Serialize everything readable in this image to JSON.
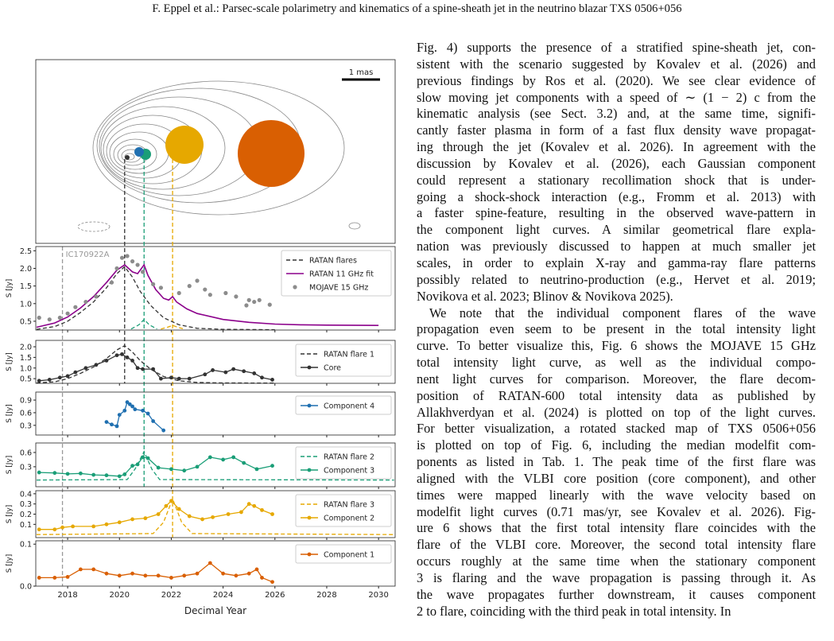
{
  "header": "F. Eppel et al.: Parsec-scale polarimetry and kinematics of a spine-sheath jet in the neutrino blazar TXS 0506+056",
  "figure": {
    "scale_label": "1 mas",
    "annotation": {
      "text": "IC170922A",
      "x": 2017.8
    },
    "flare_lines": [
      {
        "x": 2020.2,
        "color": "#333333"
      },
      {
        "x": 2020.95,
        "color": "#1a9e77"
      },
      {
        "x": 2022.05,
        "color": "#e6a800"
      }
    ],
    "x_label": "Decimal Year",
    "xlim": [
      2016.77,
      2030.64
    ],
    "xticks": [
      2018,
      2020,
      2022,
      2024,
      2026,
      2028,
      2030
    ],
    "panels": [
      {
        "ylabel": "S [Jy]",
        "ylim": [
          0.25,
          2.62
        ],
        "yticks": [
          0.5,
          {
            "value": 1,
            "label": "1.0"
          },
          1.5,
          {
            "value": 2,
            "label": "2.0"
          },
          2.5
        ],
        "series": [
          {
            "name": "RATAN flares",
            "color": "#333333",
            "style": "dashed",
            "x": [
              2016.8,
              2017.5,
              2018,
              2018.5,
              2019,
              2019.5,
              2019.9,
              2020.2,
              2020.5,
              2020.8,
              2021.2,
              2021.7,
              2022.3,
              2023,
              2024,
              2026
            ],
            "values": [
              0.27,
              0.35,
              0.5,
              0.75,
              1.05,
              1.45,
              1.85,
              2.05,
              1.75,
              1.35,
              0.95,
              0.6,
              0.4,
              0.3,
              0.27,
              0.26
            ]
          },
          {
            "color": "#1a9e77",
            "style": "dashed",
            "x": [
              2020.45,
              2020.75,
              2020.95,
              2021.15,
              2021.45
            ],
            "values": [
              0.28,
              0.4,
              0.55,
              0.4,
              0.28
            ]
          },
          {
            "color": "#e6a800",
            "style": "dashed",
            "x": [
              2021.6,
              2021.85,
              2022.05,
              2022.25,
              2022.5
            ],
            "values": [
              0.28,
              0.33,
              0.38,
              0.33,
              0.28
            ]
          },
          {
            "name": "RATAN 11 GHz fit",
            "color": "#8b008b",
            "style": "line",
            "x": [
              2016.8,
              2017.5,
              2018,
              2018.5,
              2019,
              2019.5,
              2019.9,
              2020.2,
              2020.5,
              2020.7,
              2020.95,
              2021.1,
              2021.4,
              2021.7,
              2021.9,
              2022.05,
              2022.2,
              2022.6,
              2023,
              2024,
              2025,
              2026,
              2027,
              2028,
              2030
            ],
            "values": [
              0.33,
              0.45,
              0.62,
              0.88,
              1.2,
              1.6,
              1.95,
              2.1,
              1.9,
              1.85,
              2.1,
              1.8,
              1.4,
              1.15,
              1.1,
              1.2,
              1.05,
              0.85,
              0.72,
              0.55,
              0.47,
              0.42,
              0.4,
              0.39,
              0.38
            ]
          },
          {
            "name": "MOJAVE 15 GHz",
            "color": "#8c8c8c",
            "style": "points",
            "x": [
              2016.9,
              2017.3,
              2017.7,
              2018,
              2018.3,
              2018.7,
              2019.1,
              2019.7,
              2019.9,
              2020.1,
              2020.3,
              2020.5,
              2020.7,
              2020.9,
              2021.3,
              2021.6,
              2022.3,
              2022.7,
              2023,
              2023.3,
              2023.5,
              2024.1,
              2024.5,
              2024.9,
              2025,
              2025.2,
              2025.4,
              2025.8
            ],
            "values": [
              0.6,
              0.55,
              0.6,
              0.72,
              0.9,
              1.05,
              1.2,
              1.6,
              2,
              2.3,
              2.35,
              2.2,
              2.1,
              1.9,
              1.55,
              1.45,
              1.3,
              1.5,
              1.65,
              1.4,
              1.25,
              1.3,
              1.2,
              0.95,
              1.1,
              1.05,
              1.1,
              0.97
            ]
          }
        ]
      },
      {
        "ylabel": "S [Jy]",
        "ylim": [
          0.28,
          2.3
        ],
        "yticks": [
          0.5,
          {
            "value": 1,
            "label": "1.0"
          },
          1.5,
          {
            "value": 2,
            "label": "2.0"
          }
        ],
        "series": [
          {
            "name": "RATAN flare 1",
            "color": "#333333",
            "style": "dashed",
            "x": [
              2016.8,
              2017.5,
              2018,
              2018.5,
              2019,
              2019.5,
              2019.9,
              2020.2,
              2020.5,
              2020.8,
              2021.2,
              2021.7,
              2022.3,
              2023,
              2024,
              2026
            ],
            "values": [
              0.3,
              0.35,
              0.5,
              0.75,
              1.05,
              1.45,
              1.85,
              2.05,
              1.75,
              1.35,
              0.95,
              0.6,
              0.4,
              0.32,
              0.3,
              0.29
            ]
          },
          {
            "name": "Core",
            "color": "#333333",
            "style": "markers",
            "x": [
              2016.9,
              2017.3,
              2017.7,
              2018,
              2018.3,
              2018.7,
              2019.1,
              2019.5,
              2019.9,
              2020.1,
              2020.3,
              2020.5,
              2020.7,
              2020.9,
              2021.3,
              2021.6,
              2022,
              2022.3,
              2022.7,
              2023.3,
              2023.6,
              2024.1,
              2024.4,
              2024.8,
              2025.2,
              2025.5,
              2025.9
            ],
            "values": [
              0.4,
              0.45,
              0.55,
              0.62,
              0.8,
              1,
              1.15,
              1.35,
              1.6,
              1.65,
              1.5,
              1.35,
              1,
              0.95,
              0.95,
              0.5,
              0.55,
              0.5,
              0.5,
              0.7,
              0.9,
              0.8,
              0.95,
              0.85,
              0.75,
              0.55,
              0.45
            ]
          }
        ]
      },
      {
        "ylabel": "S [Jy]",
        "ylim": [
          0.07,
          1.09
        ],
        "yticks": [
          0.3,
          0.6,
          0.9
        ],
        "series": [
          {
            "name": "Component 4",
            "color": "#1f6fb0",
            "style": "markers",
            "x": [
              2019.5,
              2019.7,
              2019.9,
              2020,
              2020.2,
              2020.3,
              2020.4,
              2020.5,
              2020.6,
              2020.9,
              2021.1,
              2021.3,
              2021.7
            ],
            "values": [
              0.38,
              0.32,
              0.28,
              0.55,
              0.65,
              0.85,
              0.8,
              0.75,
              0.68,
              0.65,
              0.58,
              0.4,
              0.18
            ]
          }
        ]
      },
      {
        "ylabel": "S [Jy]",
        "ylim": [
          -0.12,
          0.8
        ],
        "yticks": [
          0.3,
          0.6
        ],
        "series": [
          {
            "name": "RATAN flare 2",
            "color": "#1a9e77",
            "style": "dashed",
            "x": [
              2016.8,
              2020.3,
              2020.6,
              2020.95,
              2021.25,
              2021.55,
              2030.6
            ],
            "values": [
              0.02,
              0.03,
              0.25,
              0.62,
              0.25,
              0.03,
              0.02
            ]
          },
          {
            "name": "Component 3",
            "color": "#1a9e77",
            "style": "markers",
            "x": [
              2016.9,
              2017.5,
              2018,
              2018.5,
              2019,
              2019.5,
              2020,
              2020.2,
              2020.5,
              2020.7,
              2020.9,
              2021.1,
              2021.5,
              2022,
              2022.5,
              2023,
              2023.5,
              2024,
              2024.4,
              2024.8,
              2025.3,
              2025.9
            ],
            "values": [
              0.18,
              0.17,
              0.15,
              0.16,
              0.13,
              0.12,
              0.1,
              0.14,
              0.32,
              0.35,
              0.5,
              0.48,
              0.28,
              0.25,
              0.22,
              0.3,
              0.5,
              0.45,
              0.5,
              0.38,
              0.25,
              0.32
            ]
          }
        ]
      },
      {
        "ylabel": "S [Jy]",
        "ylim": [
          -0.03,
          0.43
        ],
        "yticks": [
          0.1,
          0.2,
          0.3,
          0.4
        ],
        "series": [
          {
            "name": "RATAN flare 3",
            "color": "#e6a800",
            "style": "dashed",
            "x": [
              2016.8,
              2021.3,
              2021.7,
              2022.05,
              2022.4,
              2022.8,
              2030.6
            ],
            "values": [
              0,
              0.01,
              0.12,
              0.35,
              0.12,
              0.01,
              0
            ]
          },
          {
            "name": "Component 2",
            "color": "#e6a800",
            "style": "markers",
            "x": [
              2016.9,
              2017.5,
              2017.8,
              2018.2,
              2019,
              2019.5,
              2020,
              2020.5,
              2021,
              2021.5,
              2021.8,
              2022,
              2022.3,
              2022.7,
              2023.2,
              2023.6,
              2024.2,
              2024.7,
              2025,
              2025.2,
              2025.5,
              2025.9
            ],
            "values": [
              0.05,
              0.05,
              0.07,
              0.08,
              0.08,
              0.1,
              0.12,
              0.15,
              0.16,
              0.2,
              0.28,
              0.33,
              0.25,
              0.18,
              0.15,
              0.17,
              0.2,
              0.22,
              0.3,
              0.28,
              0.24,
              0.2
            ]
          }
        ]
      },
      {
        "ylabel": "S [Jy]",
        "ylim": [
          0,
          0.108
        ],
        "yticks": [
          {
            "value": 0,
            "label": "0.0"
          },
          0.1
        ],
        "series": [
          {
            "name": "Component 1",
            "color": "#d95f02",
            "style": "markers",
            "x": [
              2016.9,
              2017.5,
              2018,
              2018.5,
              2019,
              2019.5,
              2020,
              2020.5,
              2021,
              2021.5,
              2022,
              2022.5,
              2023,
              2023.5,
              2024,
              2024.5,
              2025,
              2025.3,
              2025.5,
              2025.9
            ],
            "values": [
              0.02,
              0.02,
              0.022,
              0.04,
              0.04,
              0.03,
              0.025,
              0.03,
              0.025,
              0.025,
              0.02,
              0.025,
              0.03,
              0.055,
              0.03,
              0.025,
              0.03,
              0.04,
              0.02,
              0.01
            ]
          }
        ]
      }
    ]
  },
  "paragraphs": [
    [
      "Fig. 4) supports the presence of a stratified spine-sheath jet, con-",
      "sistent with the scenario suggested by Kovalev et al. (2026) and",
      "previous findings by Ros et al. (2020). We see clear evidence of",
      "slow moving jet components with a speed of ∼ (1 − 2) c from the",
      "kinematic analysis (see Sect. 3.2) and, at the same time, signifi-",
      "cantly faster plasma in form of a fast flux density wave propagat-",
      "ing through the jet (Kovalev et al. 2026). In agreement with the",
      "discussion by Kovalev et al. (2026), each Gaussian component",
      "could represent a stationary recollimation shock that is under-",
      "going a shock-shock interaction (e.g., Fromm et al. 2013) with",
      "a faster spine-feature, resulting in the observed wave-pattern in",
      "the component light curves. A similar geometrical flare expla-",
      "nation was previously discussed to happen at much smaller jet",
      "scales, in order to explain X-ray and gamma-ray flare patterns",
      "possibly related to neutrino-production (e.g., Hervet et al. 2019;",
      "Novikova et al. 2023; Blinov & Novikova 2025)."
    ],
    [
      "We note that the individual component flares of the wave",
      "propagation even seem to be present in the total intensity light",
      "curve. To better visualize this, Fig. 6 shows the MOJAVE 15 GHz",
      "total intensity light curve, as well as the individual compo-",
      "nent light curves for comparison. Moreover, the flare decom-",
      "position of RATAN-600 total intensity data as published by",
      "Allakhverdyan et al. (2024) is plotted on top of the light curves.",
      "For better visualization, a rotated stacked map of TXS 0506+056",
      "is plotted on top of Fig. 6, including the median modelfit com-",
      "ponents as listed in Tab. 1. The peak time of the first flare was",
      "aligned with the VLBI core position (core component), and other",
      "times were mapped linearly with the wave velocity based on",
      "modelfit light curves (0.71 mas/yr, see Kovalev et al. 2026). Fig-",
      "ure 6 shows that the first total intensity flare coincides with the",
      "flare of the VLBI core. Moreover, the second total intensity flare",
      "occurs roughly at the same time when the stationary component",
      "3 is flaring and the wave propagation is passing through it. As",
      "the wave propagates further downstream, it causes component",
      "2 to flare, coinciding with the third peak in total intensity. In"
    ]
  ]
}
